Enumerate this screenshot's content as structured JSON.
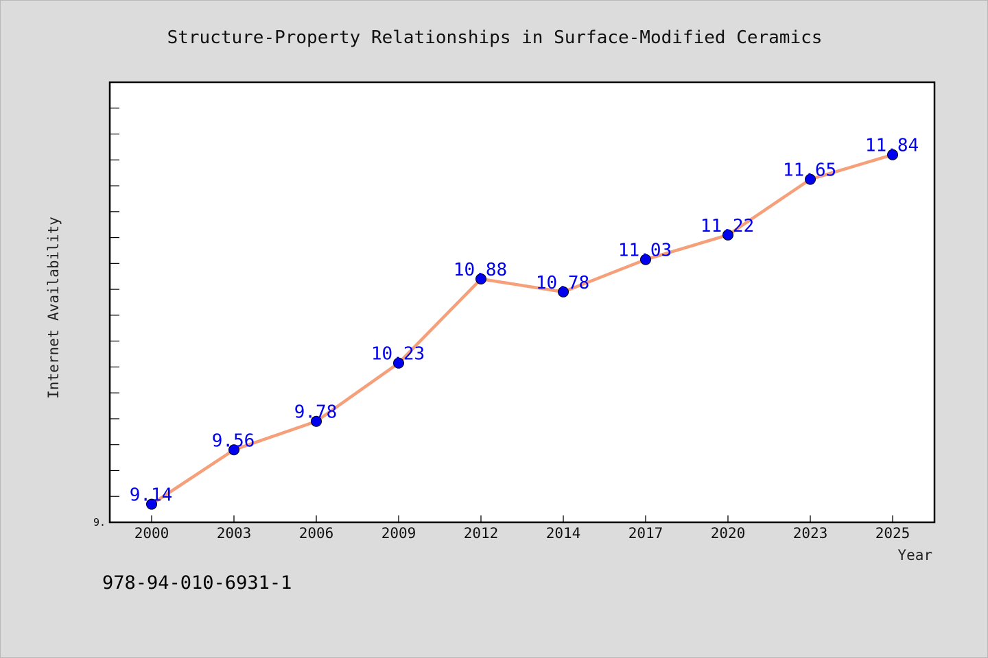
{
  "chart_data": {
    "type": "line",
    "title": "Structure-Property Relationships in Surface-Modified Ceramics",
    "xlabel": "Year",
    "ylabel": "Internet Availability",
    "categories": [
      "2000",
      "2003",
      "2006",
      "2009",
      "2012",
      "2014",
      "2017",
      "2020",
      "2023",
      "2025"
    ],
    "series": [
      {
        "values": [
          9.14,
          9.56,
          9.78,
          10.23,
          10.88,
          10.78,
          11.03,
          11.22,
          11.65,
          11.84
        ],
        "labels": [
          "9.14",
          "9.56",
          "9.78",
          "10.23",
          "10.88",
          "10.78",
          "11.03",
          "11.22",
          "11.65",
          "11.84"
        ],
        "line_color": "#f5a07a",
        "marker_color": "#0000ee"
      }
    ],
    "y_tick_labels": [
      "9."
    ],
    "ylim": [
      9.0,
      12.4
    ],
    "grid": false,
    "legend": "none"
  },
  "footer": {
    "isbn": "978-94-010-6931-1"
  }
}
